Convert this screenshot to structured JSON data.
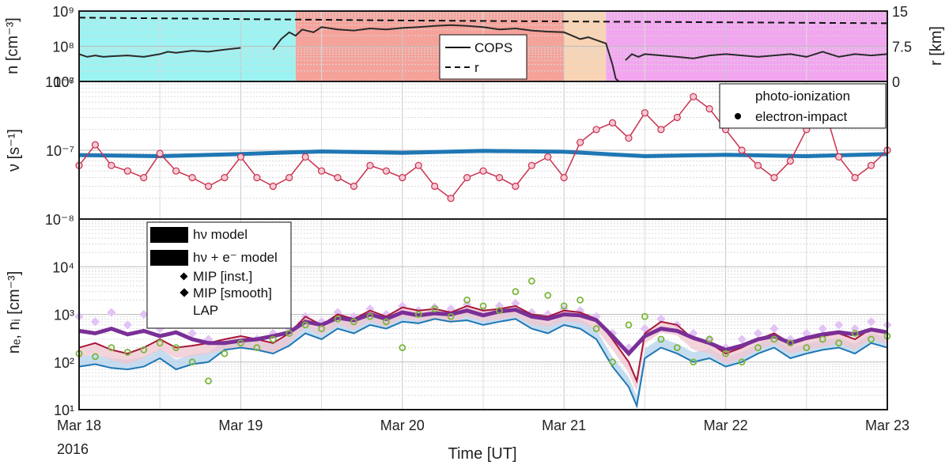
{
  "colors": {
    "region_cyan": "#9cf3f2",
    "region_red": "#f5a29a",
    "region_peach": "#f9d4b4",
    "region_magenta": "#f2a6f0",
    "cops": "#2a2a2a",
    "photo": "#1f77b4",
    "eimpact": "#c9304d",
    "hv_fill": "#b8d4ee",
    "hve_fill": "#f0c6cf",
    "mip_inst": "#e2c3f5",
    "mip_smooth": "#7a2f97",
    "lap": "#7ab63a"
  },
  "chart_data": [
    {
      "type": "line",
      "panel": "top",
      "ylabel_left": "n [cm⁻³]",
      "ylabel_right": "r [km]",
      "ylim": [
        10000000,
        1000000000
      ],
      "yscale": "log",
      "ylim_right": [
        0,
        15
      ],
      "yticks_left": [
        "10⁷",
        "10⁸",
        "10⁹"
      ],
      "yticks_right": [
        "0",
        "7.5",
        "15"
      ],
      "legend": {
        "position": "top-center",
        "entries": [
          "COPS",
          "r"
        ]
      },
      "regions": [
        {
          "x0": 0.0,
          "x1": 1.34,
          "color": "cyan"
        },
        {
          "x0": 1.34,
          "x1": 3.0,
          "color": "red"
        },
        {
          "x0": 3.0,
          "x1": 3.26,
          "color": "peach"
        },
        {
          "x0": 3.26,
          "x1": 5.0,
          "color": "magenta"
        }
      ],
      "series": [
        {
          "name": "COPS",
          "style": "solid",
          "x": [
            0,
            0.05,
            0.1,
            0.15,
            0.2,
            0.3,
            0.4,
            0.5,
            0.55,
            0.6,
            0.7,
            0.8,
            0.9,
            1.0,
            1.05,
            1.2,
            1.25,
            1.3,
            1.34,
            1.38,
            1.45,
            1.5,
            1.6,
            1.7,
            1.8,
            1.9,
            2.0,
            2.1,
            2.2,
            2.3,
            2.4,
            2.5,
            2.6,
            2.7,
            2.8,
            2.9,
            3.0,
            3.05,
            3.1,
            3.15,
            3.2,
            3.26,
            3.3,
            3.32,
            3.34,
            3.36,
            3.38,
            3.42,
            3.46,
            3.5,
            3.6,
            3.7,
            3.8,
            3.9,
            4.0,
            4.1,
            4.2,
            4.3,
            4.4,
            4.5,
            4.6,
            4.7,
            4.8,
            4.9,
            5.0
          ],
          "y": [
            60000000,
            50000000,
            55000000,
            50000000,
            52000000,
            55000000,
            50000000,
            60000000,
            70000000,
            65000000,
            75000000,
            70000000,
            80000000,
            90000000,
            null,
            80000000,
            160000000,
            250000000,
            200000000,
            300000000,
            250000000,
            350000000,
            300000000,
            280000000,
            320000000,
            300000000,
            330000000,
            350000000,
            380000000,
            400000000,
            380000000,
            350000000,
            300000000,
            320000000,
            280000000,
            260000000,
            250000000,
            200000000,
            160000000,
            180000000,
            150000000,
            120000000,
            30000000,
            12000000,
            10000000,
            null,
            40000000,
            60000000,
            50000000,
            60000000,
            55000000,
            50000000,
            45000000,
            55000000,
            60000000,
            55000000,
            50000000,
            55000000,
            60000000,
            50000000,
            70000000,
            50000000,
            60000000,
            55000000,
            60000000
          ]
        },
        {
          "name": "r",
          "style": "dashed",
          "x": [
            0,
            1,
            2,
            3,
            4,
            5
          ],
          "y_right": [
            13.6,
            13.3,
            13.0,
            12.8,
            12.6,
            12.4
          ]
        }
      ]
    },
    {
      "type": "scatter",
      "panel": "middle",
      "ylabel": "ν [s⁻¹]",
      "yscale": "log",
      "ylim": [
        1e-08,
        1e-06
      ],
      "yticks": [
        "10⁻⁸",
        "10⁻⁷",
        "10⁻⁶"
      ],
      "legend": {
        "position": "top-right",
        "entries": [
          "photo-ionization",
          "electron-impact"
        ]
      },
      "series": [
        {
          "name": "photo-ionization",
          "style": "thick-line",
          "x": [
            0,
            0.5,
            1.0,
            1.5,
            2.0,
            2.5,
            3.0,
            3.5,
            4.0,
            4.5,
            5.0
          ],
          "y": [
            8.5e-08,
            8.2e-08,
            8.8e-08,
            9.6e-08,
            9.2e-08,
            9.8e-08,
            9.5e-08,
            8.2e-08,
            8.6e-08,
            8.2e-08,
            8.8e-08
          ]
        },
        {
          "name": "electron-impact",
          "style": "markers",
          "x": [
            0,
            0.1,
            0.2,
            0.3,
            0.4,
            0.5,
            0.6,
            0.7,
            0.8,
            0.9,
            1.0,
            1.1,
            1.2,
            1.3,
            1.4,
            1.5,
            1.6,
            1.7,
            1.8,
            1.9,
            2.0,
            2.1,
            2.2,
            2.3,
            2.4,
            2.5,
            2.6,
            2.7,
            2.8,
            2.9,
            3.0,
            3.1,
            3.2,
            3.3,
            3.4,
            3.5,
            3.6,
            3.7,
            3.8,
            3.9,
            4.0,
            4.1,
            4.2,
            4.3,
            4.4,
            4.5,
            4.6,
            4.7,
            4.8,
            4.9,
            5.0
          ],
          "y": [
            6e-08,
            1.2e-07,
            6e-08,
            5e-08,
            4e-08,
            9e-08,
            5e-08,
            4e-08,
            3e-08,
            4e-08,
            8e-08,
            4e-08,
            3e-08,
            4e-08,
            8e-08,
            5e-08,
            4e-08,
            3e-08,
            6e-08,
            5e-08,
            4e-08,
            6e-08,
            3e-08,
            2e-08,
            4e-08,
            5e-08,
            4e-08,
            3e-08,
            6e-08,
            8e-08,
            4e-08,
            1.3e-07,
            2e-07,
            2.5e-07,
            1.5e-07,
            3.5e-07,
            2e-07,
            3e-07,
            6e-07,
            4e-07,
            2e-07,
            1e-07,
            6e-08,
            4e-08,
            7e-08,
            2e-07,
            5e-07,
            8e-08,
            4e-08,
            6e-08,
            1e-07
          ]
        }
      ]
    },
    {
      "type": "line",
      "panel": "bottom",
      "ylabel": "nₑ, nᵢ [cm⁻³]",
      "xlabel": "Time [UT]",
      "yscale": "log",
      "ylim": [
        10,
        100000
      ],
      "yticks": [
        "10¹",
        "10²",
        "10³",
        "10⁴"
      ],
      "xticks": [
        "Mar 18",
        "Mar 19",
        "Mar 20",
        "Mar 21",
        "Mar 22",
        "Mar 23"
      ],
      "x_sublabel": "2016",
      "legend": {
        "position": "top-left",
        "entries": [
          "hν model",
          "hν + e⁻ model",
          "MIP [inst.]",
          "MIP [smooth]",
          "LAP"
        ]
      },
      "series": [
        {
          "name": "hν model",
          "x": [
            0,
            0.1,
            0.2,
            0.3,
            0.4,
            0.5,
            0.6,
            0.7,
            0.8,
            0.9,
            1.0,
            1.1,
            1.2,
            1.3,
            1.4,
            1.5,
            1.6,
            1.7,
            1.8,
            1.9,
            2.0,
            2.1,
            2.2,
            2.3,
            2.4,
            2.5,
            2.6,
            2.7,
            2.8,
            2.9,
            3.0,
            3.1,
            3.2,
            3.3,
            3.4,
            3.45,
            3.5,
            3.6,
            3.7,
            3.8,
            3.9,
            4.0,
            4.1,
            4.2,
            4.3,
            4.4,
            4.5,
            4.6,
            4.7,
            4.8,
            4.9,
            5.0
          ],
          "y": [
            80,
            90,
            75,
            70,
            80,
            120,
            70,
            90,
            100,
            180,
            200,
            180,
            150,
            220,
            400,
            300,
            500,
            400,
            600,
            500,
            700,
            650,
            800,
            700,
            750,
            600,
            700,
            800,
            500,
            400,
            600,
            500,
            300,
            80,
            30,
            12,
            120,
            200,
            150,
            100,
            120,
            80,
            100,
            150,
            200,
            120,
            150,
            180,
            200,
            150,
            250,
            200
          ]
        },
        {
          "name": "hν + e⁻ model",
          "x": [
            0,
            0.1,
            0.2,
            0.3,
            0.4,
            0.5,
            0.6,
            0.7,
            0.8,
            0.9,
            1.0,
            1.1,
            1.2,
            1.3,
            1.4,
            1.5,
            1.6,
            1.7,
            1.8,
            1.9,
            2.0,
            2.1,
            2.2,
            2.3,
            2.4,
            2.5,
            2.6,
            2.7,
            2.8,
            2.9,
            3.0,
            3.1,
            3.2,
            3.3,
            3.4,
            3.45,
            3.5,
            3.6,
            3.7,
            3.8,
            3.9,
            4.0,
            4.1,
            4.2,
            4.3,
            4.4,
            4.5,
            4.6,
            4.7,
            4.8,
            4.9,
            5.0
          ],
          "y": [
            200,
            250,
            180,
            150,
            200,
            300,
            200,
            220,
            250,
            300,
            350,
            300,
            250,
            400,
            900,
            600,
            1000,
            800,
            1200,
            900,
            1400,
            1200,
            1300,
            1100,
            1500,
            1200,
            1300,
            1500,
            1000,
            900,
            1200,
            1100,
            800,
            300,
            100,
            40,
            400,
            700,
            600,
            300,
            250,
            150,
            200,
            300,
            400,
            250,
            300,
            350,
            400,
            300,
            500,
            400
          ]
        },
        {
          "name": "MIP [inst.]",
          "x": [
            0,
            0.1,
            0.2,
            0.3,
            0.4,
            0.5,
            0.6,
            0.7,
            0.8,
            0.9,
            1.0,
            1.1,
            1.2,
            1.3,
            1.4,
            1.5,
            1.6,
            1.7,
            1.8,
            1.9,
            2.0,
            2.1,
            2.2,
            2.3,
            2.4,
            2.5,
            2.6,
            2.7,
            2.8,
            2.9,
            3.0,
            3.1,
            3.2,
            3.3,
            3.4,
            3.5,
            3.6,
            3.7,
            3.8,
            3.9,
            4.0,
            4.1,
            4.2,
            4.3,
            4.4,
            4.5,
            4.6,
            4.7,
            4.8,
            4.9,
            5.0
          ],
          "y": [
            900,
            700,
            1100,
            600,
            1000,
            500,
            900,
            400,
            300,
            200,
            250,
            300,
            400,
            500,
            900,
            700,
            1100,
            900,
            1300,
            1000,
            1500,
            1200,
            1400,
            1300,
            1600,
            1200,
            1500,
            1700,
            1100,
            1000,
            1300,
            1200,
            900,
            400,
            200,
            500,
            800,
            600,
            400,
            300,
            200,
            300,
            400,
            500,
            300,
            400,
            500,
            600,
            500,
            700,
            600
          ]
        },
        {
          "name": "MIP [smooth]",
          "x": [
            0,
            0.1,
            0.2,
            0.3,
            0.4,
            0.5,
            0.6,
            0.7,
            0.8,
            0.9,
            1.0,
            1.1,
            1.2,
            1.3,
            1.4,
            1.5,
            1.6,
            1.7,
            1.8,
            1.9,
            2.0,
            2.1,
            2.2,
            2.3,
            2.4,
            2.5,
            2.6,
            2.7,
            2.8,
            2.9,
            3.0,
            3.1,
            3.2,
            3.3,
            3.4,
            3.5,
            3.6,
            3.7,
            3.8,
            3.9,
            4.0,
            4.1,
            4.2,
            4.3,
            4.4,
            4.5,
            4.6,
            4.7,
            4.8,
            4.9,
            5.0
          ],
          "y": [
            450,
            400,
            500,
            380,
            450,
            350,
            420,
            300,
            250,
            250,
            280,
            300,
            350,
            420,
            700,
            600,
            850,
            750,
            1000,
            800,
            1100,
            950,
            1050,
            1000,
            1200,
            950,
            1150,
            1250,
            900,
            800,
            1000,
            950,
            750,
            350,
            150,
            350,
            500,
            450,
            320,
            250,
            180,
            220,
            300,
            350,
            250,
            320,
            380,
            420,
            380,
            480,
            420
          ]
        },
        {
          "name": "LAP",
          "style": "markers",
          "x": [
            0,
            0.1,
            0.2,
            0.3,
            0.4,
            0.5,
            0.6,
            0.7,
            0.8,
            0.9,
            1.0,
            1.1,
            1.2,
            1.3,
            1.4,
            1.5,
            1.6,
            1.7,
            1.8,
            1.9,
            2.0,
            2.1,
            2.2,
            2.3,
            2.4,
            2.5,
            2.6,
            2.7,
            2.8,
            2.9,
            3.0,
            3.1,
            3.2,
            3.3,
            3.4,
            3.5,
            3.6,
            3.7,
            3.8,
            3.9,
            4.0,
            4.1,
            4.2,
            4.3,
            4.4,
            4.5,
            4.6,
            4.7,
            4.8,
            4.9,
            5.0
          ],
          "y": [
            150,
            130,
            200,
            160,
            180,
            250,
            200,
            100,
            40,
            150,
            250,
            200,
            300,
            400,
            600,
            500,
            800,
            700,
            900,
            700,
            200,
            1000,
            1300,
            900,
            2000,
            1500,
            1200,
            3000,
            5000,
            2500,
            1500,
            2000,
            500,
            100,
            600,
            900,
            300,
            200,
            100,
            300,
            150,
            100,
            200,
            300,
            250,
            200,
            300,
            250,
            400,
            300,
            350
          ]
        }
      ]
    }
  ]
}
